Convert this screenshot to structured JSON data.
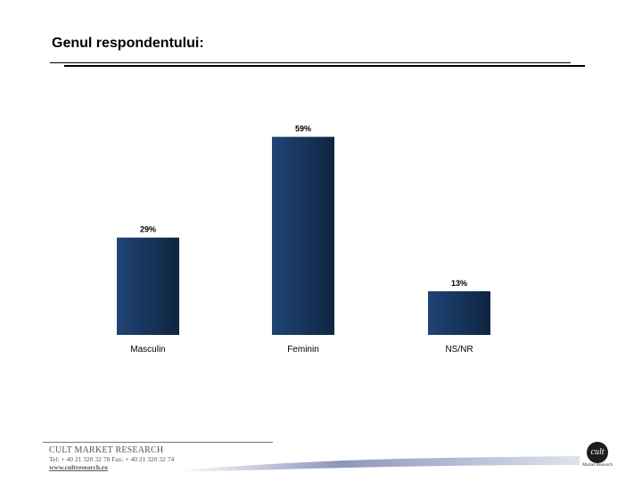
{
  "header": {
    "title": "Genul respondentului:"
  },
  "chart_data": {
    "type": "bar",
    "title": "",
    "xlabel": "",
    "ylabel": "",
    "categories": [
      "Masculin",
      "Feminin",
      "NS/NR"
    ],
    "values": [
      29,
      59,
      13
    ],
    "value_labels": [
      "29%",
      "59%",
      "13%"
    ],
    "ylim": [
      0,
      65
    ],
    "grid": false,
    "bar_color_dark": "#0f2540",
    "bar_color_light": "#1f4476"
  },
  "footer": {
    "company": "CULT MARKET RESEARCH",
    "contact": "Tel: + 40 21 320 32 78 Fax: + 40 21 320 32 74",
    "website": "www.cultresearch.ro"
  },
  "logo": {
    "mark": "cult",
    "caption": "Market Research"
  }
}
